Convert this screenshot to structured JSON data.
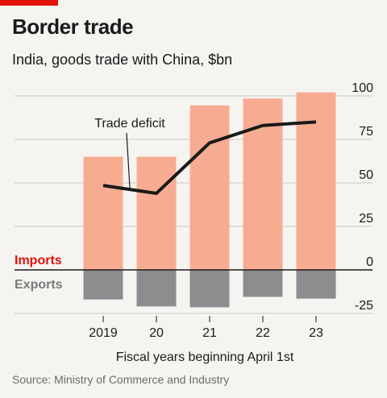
{
  "header": {
    "title": "Border trade",
    "subtitle": "India, goods trade with China, $bn"
  },
  "footer": {
    "source": "Source: Ministry of Commerce and Industry"
  },
  "colors": {
    "imports": "#f7ac92",
    "exports": "#8d8d8f",
    "line": "#1a1a1a",
    "imports_label": "#e3120b",
    "exports_label": "#7a7a7a",
    "grid": "#c9c7c4",
    "accent": "#e3120b"
  },
  "chart_data": {
    "type": "bar",
    "categories": [
      "2019",
      "20",
      "21",
      "22",
      "23"
    ],
    "series": [
      {
        "name": "Imports",
        "values": [
          65,
          65,
          94.5,
          98.5,
          102
        ]
      },
      {
        "name": "Exports",
        "values": [
          -17,
          -21,
          -21.5,
          -15.5,
          -16.5
        ]
      },
      {
        "name": "Trade deficit",
        "type": "line",
        "values": [
          48.5,
          44,
          73,
          83,
          85
        ]
      }
    ],
    "xlabel": "Fiscal years beginning April 1st",
    "ylabel": "",
    "yticks": [
      100,
      75,
      50,
      25,
      0,
      -25
    ],
    "ylim": [
      -25,
      100
    ],
    "grid": true,
    "axis_side": "right",
    "annotation": "Trade deficit"
  }
}
